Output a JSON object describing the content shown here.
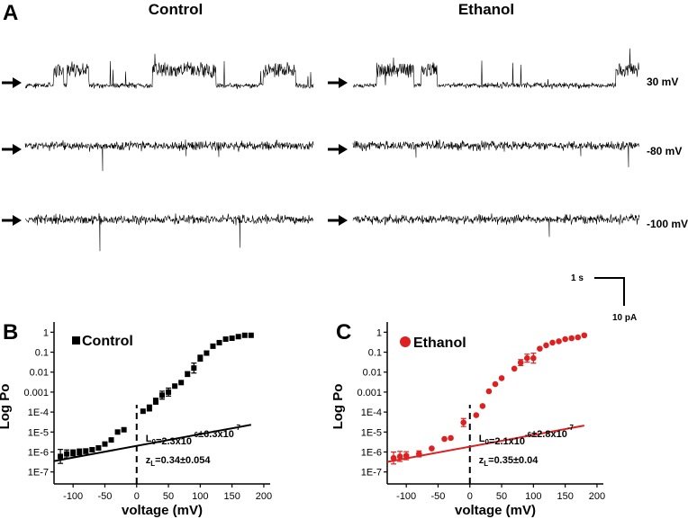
{
  "panel_a": {
    "letter": "A",
    "columns": [
      "Control",
      "Ethanol"
    ],
    "voltages": [
      "30 mV",
      "-80 mV",
      "-100 mV"
    ],
    "scale_bar": {
      "time_label": "1 s",
      "current_label": "10 pA"
    },
    "trace_color": "#000000"
  },
  "chart_data": [
    {
      "type": "scatter",
      "panel": "B",
      "legend": "Control",
      "legend_marker": "square",
      "color": "#000000",
      "xlabel": "voltage (mV)",
      "ylabel": "Log Po",
      "xlim": [
        -130,
        210
      ],
      "ylim_log10": [
        -7.6,
        0.15
      ],
      "log_scale_y": true,
      "xticks": [
        -100,
        -50,
        0,
        50,
        100,
        150,
        200
      ],
      "xtick_labels": [
        "-100",
        "-50",
        "0",
        "50",
        "100",
        "150",
        "200"
      ],
      "yticks_log10": [
        0,
        -1,
        -2,
        -3,
        -4,
        -5,
        -6,
        -7
      ],
      "ytick_labels": [
        "1",
        "0.1",
        "0.01",
        "0.001",
        "1E-4",
        "1E-5",
        "1E-6",
        "1E-7"
      ],
      "points": [
        {
          "x": -120,
          "y": 6e-07,
          "err_log": 0.35
        },
        {
          "x": -110,
          "y": 8e-07,
          "err_log": 0.2
        },
        {
          "x": -100,
          "y": 9e-07,
          "err_log": 0.15
        },
        {
          "x": -90,
          "y": 1e-06,
          "err_log": 0.15
        },
        {
          "x": -80,
          "y": 1.1e-06,
          "err_log": 0.12
        },
        {
          "x": -70,
          "y": 1.3e-06,
          "err_log": 0.1
        },
        {
          "x": -60,
          "y": 1.6e-06,
          "err_log": 0.1
        },
        {
          "x": -50,
          "y": 2.5e-06,
          "err_log": 0
        },
        {
          "x": -40,
          "y": 4e-06,
          "err_log": 0
        },
        {
          "x": -30,
          "y": 1e-05,
          "err_log": 0
        },
        {
          "x": -20,
          "y": 1.3e-05,
          "err_log": 0
        },
        {
          "x": 10,
          "y": 0.00011,
          "err_log": 0
        },
        {
          "x": 20,
          "y": 0.00016,
          "err_log": 0.15
        },
        {
          "x": 30,
          "y": 0.00035,
          "err_log": 0.15
        },
        {
          "x": 40,
          "y": 0.0007,
          "err_log": 0.2
        },
        {
          "x": 50,
          "y": 0.001,
          "err_log": 0.2
        },
        {
          "x": 60,
          "y": 0.002,
          "err_log": 0
        },
        {
          "x": 70,
          "y": 0.003,
          "err_log": 0
        },
        {
          "x": 80,
          "y": 0.008,
          "err_log": 0.12
        },
        {
          "x": 90,
          "y": 0.016,
          "err_log": 0.25
        },
        {
          "x": 100,
          "y": 0.05,
          "err_log": 0.15
        },
        {
          "x": 110,
          "y": 0.09,
          "err_log": 0.1
        },
        {
          "x": 120,
          "y": 0.2,
          "err_log": 0.1
        },
        {
          "x": 130,
          "y": 0.3,
          "err_log": 0.08
        },
        {
          "x": 140,
          "y": 0.45,
          "err_log": 0
        },
        {
          "x": 150,
          "y": 0.5,
          "err_log": 0
        },
        {
          "x": 160,
          "y": 0.6,
          "err_log": 0
        },
        {
          "x": 170,
          "y": 0.7,
          "err_log": 0
        },
        {
          "x": 180,
          "y": 0.7,
          "err_log": 0
        }
      ],
      "fit_line": {
        "x": [
          -130,
          180
        ],
        "y": [
          3.5e-07,
          2.3e-05
        ]
      },
      "zero_line_x": 0,
      "annotation": {
        "prefix1": "L",
        "sub1": "0",
        "text1": "=2.3x10",
        "sup1": "-6",
        "text2": "±6.3x10",
        "sup2": "-7",
        "prefix2": "z",
        "sub2": "L",
        "text3": "=0.34±0.054"
      }
    },
    {
      "type": "scatter",
      "panel": "C",
      "legend": "Ethanol",
      "legend_marker": "circle",
      "color": "#dd2020",
      "xlabel": "voltage (mV)",
      "ylabel": "Log Po",
      "xlim": [
        -130,
        210
      ],
      "ylim_log10": [
        -7.6,
        0.15
      ],
      "log_scale_y": true,
      "xticks": [
        -100,
        -50,
        0,
        50,
        100,
        150,
        200
      ],
      "xtick_labels": [
        "-100",
        "-50",
        "0",
        "50",
        "100",
        "150",
        "200"
      ],
      "yticks_log10": [
        0,
        -1,
        -2,
        -3,
        -4,
        -5,
        -6,
        -7
      ],
      "ytick_labels": [
        "1",
        "0.1",
        "0.01",
        "0.001",
        "1E-4",
        "1E-5",
        "1E-6",
        "1E-7"
      ],
      "points": [
        {
          "x": -120,
          "y": 5e-07,
          "err_log": 0.3
        },
        {
          "x": -110,
          "y": 6e-07,
          "err_log": 0.25
        },
        {
          "x": -100,
          "y": 6.5e-07,
          "err_log": 0.2
        },
        {
          "x": -80,
          "y": 8e-07,
          "err_log": 0.15
        },
        {
          "x": -60,
          "y": 1.5e-06,
          "err_log": 0
        },
        {
          "x": -40,
          "y": 4.5e-06,
          "err_log": 0
        },
        {
          "x": -30,
          "y": 5e-06,
          "err_log": 0
        },
        {
          "x": -10,
          "y": 3e-05,
          "err_log": 0.2
        },
        {
          "x": 10,
          "y": 7e-05,
          "err_log": 0
        },
        {
          "x": 20,
          "y": 0.0002,
          "err_log": 0
        },
        {
          "x": 30,
          "y": 0.0011,
          "err_log": 0
        },
        {
          "x": 40,
          "y": 0.0025,
          "err_log": 0
        },
        {
          "x": 50,
          "y": 0.005,
          "err_log": 0
        },
        {
          "x": 70,
          "y": 0.015,
          "err_log": 0
        },
        {
          "x": 80,
          "y": 0.03,
          "err_log": 0.15
        },
        {
          "x": 90,
          "y": 0.05,
          "err_log": 0.2
        },
        {
          "x": 100,
          "y": 0.05,
          "err_log": 0.25
        },
        {
          "x": 110,
          "y": 0.15,
          "err_log": 0
        },
        {
          "x": 120,
          "y": 0.22,
          "err_log": 0
        },
        {
          "x": 130,
          "y": 0.3,
          "err_log": 0
        },
        {
          "x": 140,
          "y": 0.35,
          "err_log": 0
        },
        {
          "x": 150,
          "y": 0.45,
          "err_log": 0
        },
        {
          "x": 160,
          "y": 0.5,
          "err_log": 0
        },
        {
          "x": 170,
          "y": 0.55,
          "err_log": 0
        },
        {
          "x": 180,
          "y": 0.7,
          "err_log": 0
        }
      ],
      "fit_line": {
        "x": [
          -130,
          180
        ],
        "y": [
          3.2e-07,
          2.1e-05
        ]
      },
      "zero_line_x": 0,
      "annotation": {
        "prefix1": "L",
        "sub1": "0",
        "text1": "=2.1x10",
        "sup1": "-6",
        "text2": "±2.8x10",
        "sup2": "-7",
        "prefix2": "z",
        "sub2": "L",
        "text3": "=0.35±0.04"
      }
    }
  ]
}
